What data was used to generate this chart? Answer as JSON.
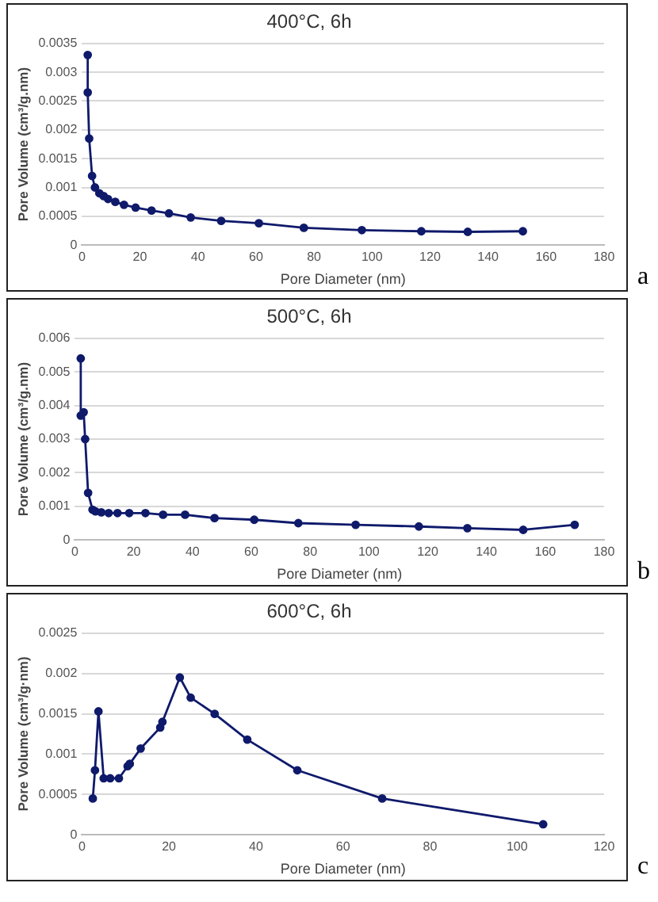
{
  "chart_data": [
    {
      "type": "line",
      "title": "400°C, 6h",
      "xlabel": "Pore Diameter (nm)",
      "ylabel": "Pore Volume (cm³/g.nm)",
      "annotations": [
        "a"
      ],
      "color": "#0f1a6b",
      "marker": "circle",
      "line_style": "solid",
      "grid": "y",
      "x": [
        2,
        2,
        2.5,
        3.5,
        4.5,
        6,
        7.5,
        9,
        11.5,
        14.5,
        18.5,
        24,
        30,
        37.5,
        48,
        61,
        76.5,
        96.5,
        117,
        133,
        152
      ],
      "values": [
        0.0033,
        0.00265,
        0.00185,
        0.0012,
        0.001,
        0.0009,
        0.00085,
        0.0008,
        0.00075,
        0.0007,
        0.00065,
        0.0006,
        0.00055,
        0.00048,
        0.00042,
        0.00038,
        0.0003,
        0.00026,
        0.00024,
        0.00023,
        0.00024
      ],
      "xlim": [
        0,
        180
      ],
      "xticks": [
        0,
        20,
        40,
        60,
        80,
        100,
        120,
        140,
        160,
        180
      ],
      "ylim": [
        0,
        0.0035
      ],
      "yticks": [
        0,
        0.0005,
        0.001,
        0.0015,
        0.002,
        0.0025,
        0.003,
        0.0035
      ]
    },
    {
      "type": "line",
      "title": "500°C, 6h",
      "xlabel": "Pore Diameter (nm)",
      "ylabel": "Pore Volume (cm³/g.nm)",
      "annotations": [
        "b"
      ],
      "color": "#0f1a6b",
      "marker": "circle",
      "line_style": "solid",
      "grid": "y",
      "x": [
        2,
        2,
        3,
        3.5,
        4.5,
        6,
        7,
        9,
        11.5,
        14.5,
        18.5,
        24,
        30,
        37.5,
        47.5,
        61,
        76,
        95.5,
        117,
        133.5,
        152.5,
        170
      ],
      "values": [
        0.0054,
        0.0037,
        0.0038,
        0.003,
        0.0014,
        0.0009,
        0.00085,
        0.00082,
        0.0008,
        0.0008,
        0.0008,
        0.0008,
        0.00075,
        0.00075,
        0.00065,
        0.0006,
        0.0005,
        0.00045,
        0.0004,
        0.00035,
        0.0003,
        0.00045
      ],
      "xlim": [
        0,
        180
      ],
      "xticks": [
        0,
        20,
        40,
        60,
        80,
        100,
        120,
        140,
        160,
        180
      ],
      "ylim": [
        0,
        0.006
      ],
      "yticks": [
        0,
        0.001,
        0.002,
        0.003,
        0.004,
        0.005,
        0.006
      ]
    },
    {
      "type": "line",
      "title": "600°C, 6h",
      "xlabel": "Pore Diameter (nm)",
      "ylabel": "Pore Volume (cm³/g·nm)",
      "annotations": [
        "c"
      ],
      "color": "#0f1a6b",
      "marker": "circle",
      "line_style": "solid",
      "grid": "y",
      "x": [
        2.5,
        3,
        3.8,
        5,
        6.5,
        8.5,
        10.5,
        11,
        13.5,
        18,
        18.5,
        22.5,
        25,
        30.5,
        38,
        49.5,
        69,
        106
      ],
      "values": [
        0.00045,
        0.0008,
        0.00153,
        0.0007,
        0.0007,
        0.0007,
        0.00085,
        0.00088,
        0.00107,
        0.00133,
        0.0014,
        0.00195,
        0.0017,
        0.0015,
        0.00118,
        0.0008,
        0.00045,
        0.00013
      ],
      "xlim": [
        0,
        120
      ],
      "xticks": [
        0,
        20,
        40,
        60,
        80,
        100,
        120
      ],
      "ylim": [
        0,
        0.0025
      ],
      "yticks": [
        0,
        0.0005,
        0.001,
        0.0015,
        0.002,
        0.0025
      ]
    }
  ]
}
